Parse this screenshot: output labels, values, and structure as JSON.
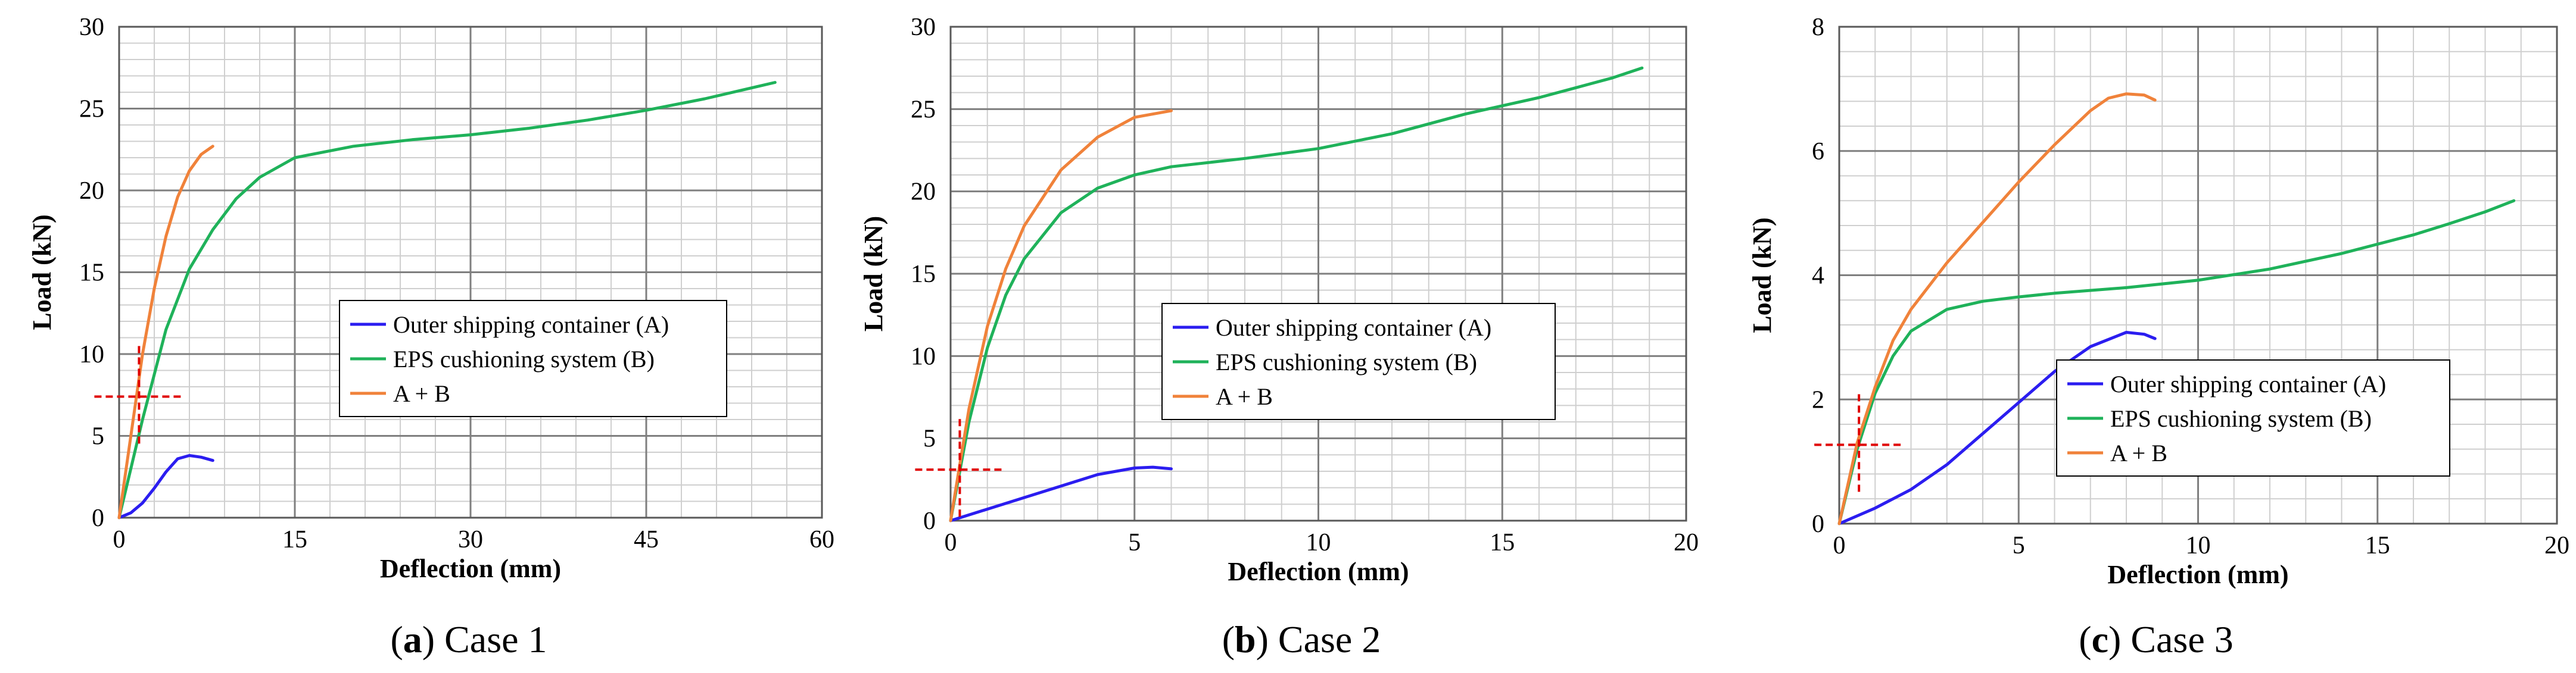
{
  "figure": {
    "panels": [
      {
        "caption_letter": "a",
        "caption_text": ") Case 1"
      },
      {
        "caption_letter": "b",
        "caption_text": ") Case 2"
      },
      {
        "caption_letter": "c",
        "caption_text": ") Case 3"
      }
    ]
  },
  "colors": {
    "series_a": "#2B1DF0",
    "series_b": "#1FB25A",
    "series_ab": "#F0823A",
    "marker": "#E00000",
    "major_grid": "#7F7F7F",
    "minor_grid": "#CFCFCF"
  },
  "legend_entries": [
    "Outer shipping container (A)",
    "EPS cushioning system (B)",
    "A + B"
  ],
  "chart_data": [
    {
      "type": "line",
      "xlabel": "Deflection (mm)",
      "ylabel": "Load (kN)",
      "xlim": [
        0,
        60
      ],
      "ylim": [
        0,
        30
      ],
      "xticks": [
        0,
        15,
        30,
        45,
        60
      ],
      "yticks": [
        0,
        5,
        10,
        15,
        20,
        25,
        30
      ],
      "grid": true,
      "legend_position": "center-right",
      "series": [
        {
          "name": "Outer shipping container (A)",
          "color": "#2B1DF0",
          "x": [
            0,
            1,
            2,
            3,
            4,
            5,
            6,
            7,
            8
          ],
          "y": [
            0,
            0.3,
            0.9,
            1.8,
            2.8,
            3.6,
            3.8,
            3.7,
            3.5
          ]
        },
        {
          "name": "EPS cushioning system (B)",
          "color": "#1FB25A",
          "x": [
            0,
            1,
            2,
            4,
            6,
            8,
            10,
            12,
            15,
            20,
            25,
            30,
            35,
            40,
            45,
            50,
            56
          ],
          "y": [
            0,
            3,
            6,
            11.5,
            15.2,
            17.6,
            19.5,
            20.8,
            22,
            22.7,
            23.1,
            23.4,
            23.8,
            24.3,
            24.9,
            25.6,
            26.6
          ]
        },
        {
          "name": "A + B",
          "color": "#F0823A",
          "x": [
            0,
            1,
            2,
            3,
            4,
            5,
            6,
            7,
            8
          ],
          "y": [
            0,
            5,
            10,
            14,
            17.2,
            19.6,
            21.2,
            22.2,
            22.7
          ]
        }
      ],
      "markers": [
        {
          "x": 1.7,
          "y": 7.4
        }
      ]
    },
    {
      "type": "line",
      "xlabel": "Deflection (mm)",
      "ylabel": "Load (kN)",
      "xlim": [
        0,
        20
      ],
      "ylim": [
        0,
        30
      ],
      "xticks": [
        0,
        5,
        10,
        15,
        20
      ],
      "yticks": [
        0,
        5,
        10,
        15,
        20,
        25,
        30
      ],
      "grid": true,
      "legend_position": "center-right",
      "series": [
        {
          "name": "Outer shipping container (A)",
          "color": "#2B1DF0",
          "x": [
            0,
            1,
            2,
            3,
            4,
            5,
            5.5,
            6
          ],
          "y": [
            0,
            0.7,
            1.4,
            2.1,
            2.8,
            3.2,
            3.25,
            3.15
          ]
        },
        {
          "name": "EPS cushioning system (B)",
          "color": "#1FB25A",
          "x": [
            0,
            0.5,
            1,
            1.5,
            2,
            3,
            4,
            5,
            6,
            8,
            10,
            12,
            14,
            16,
            17,
            18,
            18.8
          ],
          "y": [
            0,
            6,
            10.5,
            13.7,
            15.9,
            18.7,
            20.2,
            21,
            21.5,
            22,
            22.6,
            23.5,
            24.7,
            25.7,
            26.3,
            26.9,
            27.5
          ]
        },
        {
          "name": "A + B",
          "color": "#F0823A",
          "x": [
            0,
            0.5,
            1,
            1.5,
            2,
            3,
            4,
            5,
            6
          ],
          "y": [
            0,
            6.8,
            11.8,
            15.3,
            17.9,
            21.3,
            23.3,
            24.5,
            24.9
          ]
        }
      ],
      "markers": [
        {
          "x": 0.25,
          "y": 3.1
        }
      ]
    },
    {
      "type": "line",
      "xlabel": "Deflection (mm)",
      "ylabel": "Load (kN)",
      "xlim": [
        0,
        20
      ],
      "ylim": [
        0,
        8
      ],
      "xticks": [
        0,
        5,
        10,
        15,
        20
      ],
      "yticks": [
        0,
        2,
        4,
        6,
        8
      ],
      "grid": true,
      "legend_position": "center-right",
      "series": [
        {
          "name": "Outer shipping container (A)",
          "color": "#2B1DF0",
          "x": [
            0,
            1,
            2,
            3,
            4,
            5,
            6,
            7,
            8,
            8.5,
            8.8
          ],
          "y": [
            0,
            0.25,
            0.55,
            0.95,
            1.45,
            1.95,
            2.45,
            2.85,
            3.08,
            3.05,
            2.98
          ]
        },
        {
          "name": "EPS cushioning system (B)",
          "color": "#1FB25A",
          "x": [
            0,
            0.5,
            1,
            1.5,
            2,
            3,
            4,
            5,
            6,
            8,
            10,
            12,
            14,
            16,
            17,
            18,
            18.8
          ],
          "y": [
            0,
            1.2,
            2.1,
            2.7,
            3.1,
            3.45,
            3.58,
            3.65,
            3.71,
            3.8,
            3.92,
            4.1,
            4.35,
            4.65,
            4.83,
            5.02,
            5.2
          ]
        },
        {
          "name": "A + B",
          "color": "#F0823A",
          "x": [
            0,
            0.5,
            1,
            1.5,
            2,
            3,
            4,
            5,
            6,
            7,
            7.5,
            8,
            8.5,
            8.8
          ],
          "y": [
            0,
            1.3,
            2.2,
            2.95,
            3.45,
            4.2,
            4.85,
            5.5,
            6.1,
            6.65,
            6.85,
            6.92,
            6.9,
            6.82
          ]
        }
      ],
      "markers": [
        {
          "x": 0.55,
          "y": 1.27
        }
      ]
    }
  ]
}
